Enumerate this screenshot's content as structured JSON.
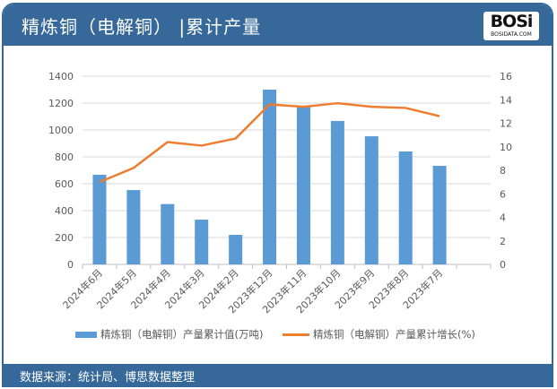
{
  "header": {
    "title": "精炼铜（电解铜） |累计产量",
    "logo_text": "BOSi",
    "logo_sub": "BOSIDATA.COM"
  },
  "footer": {
    "source": "数据来源：统计局、博思数据整理"
  },
  "colors": {
    "header": "#36689a",
    "bar": "#5b9bd5",
    "line": "#ed7d31"
  },
  "chart_data": {
    "type": "bar+line",
    "categories": [
      "2024年6月",
      "2024年5月",
      "2024年4月",
      "2024年3月",
      "2024年2月",
      "2023年12月",
      "2023年11月",
      "2023年10月",
      "2023年9月",
      "2023年8月",
      "2023年7月"
    ],
    "series": [
      {
        "name": "精炼铜（电解铜）产量累计值(万吨)",
        "type": "bar",
        "axis": "left",
        "values": [
          667,
          553,
          449,
          333,
          220,
          1300,
          1178,
          1067,
          953,
          840,
          733
        ]
      },
      {
        "name": "精炼铜（电解铜）产量累计增长(%)",
        "type": "line",
        "axis": "right",
        "values": [
          7.0,
          8.2,
          10.4,
          10.1,
          10.7,
          13.6,
          13.4,
          13.7,
          13.4,
          13.3,
          12.6
        ]
      }
    ],
    "left_axis": {
      "min": 0,
      "max": 1400,
      "ticks": [
        "0",
        "200",
        "400",
        "600",
        "800",
        "1000",
        "1200",
        "1400"
      ]
    },
    "right_axis": {
      "min": 0,
      "max": 16,
      "ticks": [
        "0",
        "2",
        "4",
        "6",
        "8",
        "10",
        "12",
        "14",
        "16"
      ]
    },
    "grid": true,
    "legend": "bottom"
  }
}
